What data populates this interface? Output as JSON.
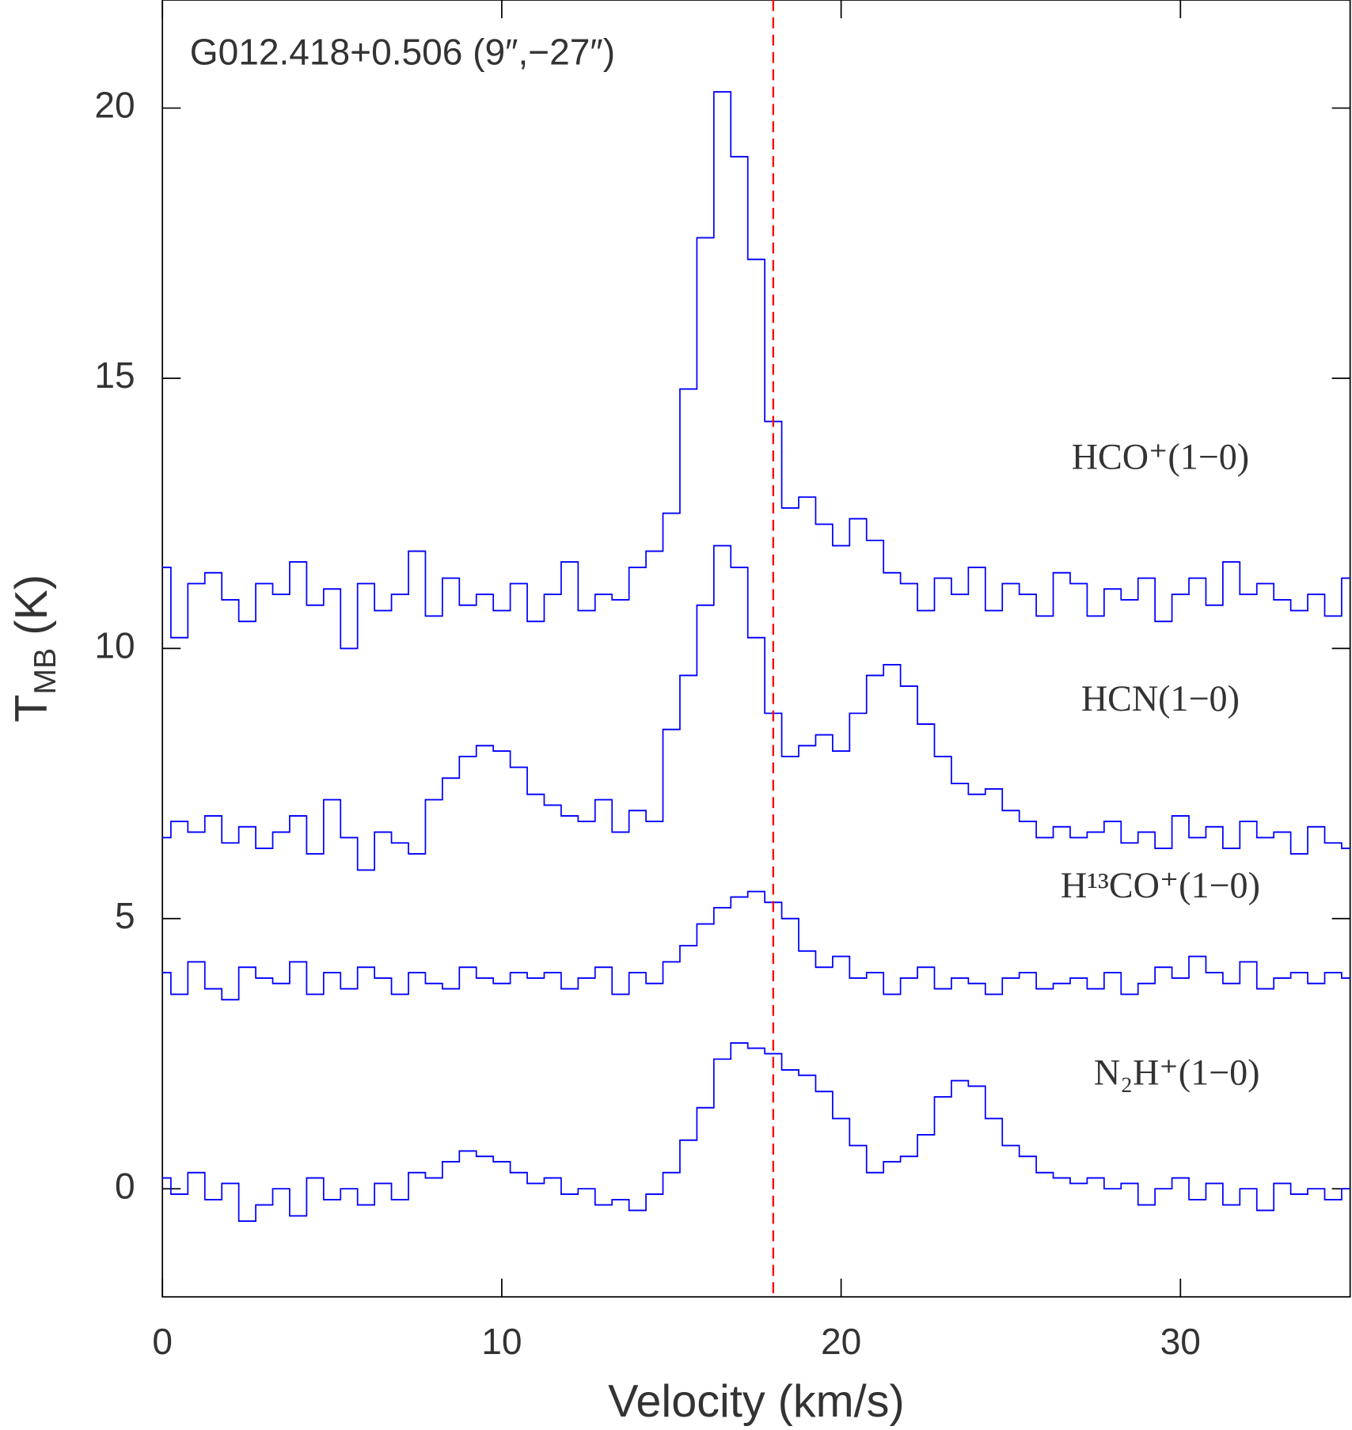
{
  "chart_data": {
    "type": "step",
    "title": "G012.418+0.506 (9″,−27″)",
    "x_label": "Velocity (km/s)",
    "y_label": [
      "T",
      "MB",
      "(K)"
    ],
    "xlim": [
      0,
      35
    ],
    "ylim": [
      -2,
      22
    ],
    "xticks": [
      0,
      10,
      20,
      30
    ],
    "yticks": [
      0,
      5,
      10,
      15,
      20
    ],
    "vline": {
      "x": 18,
      "color": "#ff0000"
    },
    "x": [
      0,
      0.5,
      1,
      1.5,
      2,
      2.5,
      3,
      3.5,
      4,
      4.5,
      5,
      5.5,
      6,
      6.5,
      7,
      7.5,
      8,
      8.5,
      9,
      9.5,
      10,
      10.5,
      11,
      11.5,
      12,
      12.5,
      13,
      13.5,
      14,
      14.5,
      15,
      15.5,
      16,
      16.5,
      17,
      17.5,
      18,
      18.5,
      19,
      19.5,
      20,
      20.5,
      21,
      21.5,
      22,
      22.5,
      23,
      23.5,
      24,
      24.5,
      25,
      25.5,
      26,
      26.5,
      27,
      27.5,
      28,
      28.5,
      29,
      29.5,
      30,
      30.5,
      31,
      31.5,
      32,
      32.5,
      33,
      33.5,
      34,
      34.5,
      35
    ],
    "series": [
      {
        "name": "HCO⁺(1−0)",
        "color": "#0000ff",
        "values": [
          11.5,
          10.2,
          11.2,
          11.4,
          10.9,
          10.5,
          11.2,
          11.0,
          11.6,
          10.8,
          11.1,
          10.0,
          11.2,
          10.7,
          11.0,
          11.8,
          10.6,
          11.3,
          10.8,
          11.0,
          10.7,
          11.2,
          10.5,
          11.0,
          11.6,
          10.7,
          11.0,
          10.9,
          11.5,
          11.8,
          12.5,
          14.8,
          17.6,
          20.3,
          19.1,
          17.2,
          14.2,
          12.6,
          12.8,
          12.3,
          11.9,
          12.4,
          12.0,
          11.4,
          11.2,
          10.7,
          11.3,
          11.0,
          11.5,
          10.7,
          11.2,
          11.0,
          10.6,
          11.4,
          11.2,
          10.6,
          11.1,
          10.9,
          11.3,
          10.5,
          11.0,
          11.3,
          10.8,
          11.6,
          11.0,
          11.2,
          10.9,
          10.7,
          11.0,
          10.6,
          11.3
        ]
      },
      {
        "name": "HCN(1−0)",
        "color": "#0000ff",
        "values": [
          6.5,
          6.8,
          6.6,
          6.9,
          6.4,
          6.7,
          6.3,
          6.6,
          6.9,
          6.2,
          7.2,
          6.5,
          5.9,
          6.6,
          6.4,
          6.2,
          7.2,
          7.6,
          8.0,
          8.2,
          8.1,
          7.8,
          7.3,
          7.1,
          6.9,
          6.8,
          7.2,
          6.6,
          7.0,
          6.8,
          8.5,
          9.5,
          10.8,
          11.9,
          11.5,
          10.2,
          8.8,
          8.0,
          8.2,
          8.4,
          8.1,
          8.8,
          9.5,
          9.7,
          9.3,
          8.6,
          8.0,
          7.5,
          7.3,
          7.4,
          7.0,
          6.8,
          6.5,
          6.7,
          6.5,
          6.6,
          6.8,
          6.4,
          6.6,
          6.3,
          6.9,
          6.5,
          6.7,
          6.3,
          6.8,
          6.5,
          6.6,
          6.2,
          6.7,
          6.4,
          6.3
        ]
      },
      {
        "name": "H¹³CO⁺(1−0)",
        "color": "#0000ff",
        "values": [
          4.0,
          3.6,
          4.2,
          3.7,
          3.5,
          4.1,
          3.9,
          3.8,
          4.2,
          3.6,
          4.0,
          3.7,
          4.1,
          3.9,
          3.6,
          4.0,
          3.8,
          3.7,
          4.1,
          3.9,
          3.8,
          4.0,
          3.9,
          4.0,
          3.7,
          3.9,
          4.1,
          3.6,
          4.0,
          3.8,
          4.2,
          4.5,
          4.9,
          5.2,
          5.4,
          5.5,
          5.3,
          5.0,
          4.4,
          4.1,
          4.3,
          3.9,
          4.0,
          3.6,
          3.9,
          4.1,
          3.7,
          3.9,
          3.8,
          3.6,
          3.9,
          4.0,
          3.7,
          3.8,
          3.9,
          3.7,
          4.0,
          3.6,
          3.8,
          4.1,
          3.9,
          4.3,
          4.0,
          3.8,
          4.2,
          3.7,
          3.9,
          4.0,
          3.8,
          4.0,
          3.9
        ]
      },
      {
        "name": "N₂H⁺(1−0)",
        "color": "#0000ff",
        "values": [
          0.2,
          -0.1,
          0.3,
          -0.2,
          0.1,
          -0.6,
          -0.3,
          0.0,
          -0.5,
          0.2,
          -0.2,
          0.0,
          -0.3,
          0.1,
          -0.2,
          0.3,
          0.2,
          0.5,
          0.7,
          0.6,
          0.5,
          0.3,
          0.1,
          0.2,
          -0.1,
          0.0,
          -0.3,
          -0.2,
          -0.4,
          -0.1,
          0.3,
          0.9,
          1.5,
          2.4,
          2.7,
          2.6,
          2.5,
          2.2,
          2.1,
          1.8,
          1.3,
          0.8,
          0.3,
          0.5,
          0.6,
          1.0,
          1.7,
          2.0,
          1.9,
          1.3,
          0.8,
          0.6,
          0.3,
          0.2,
          0.1,
          0.2,
          0.0,
          0.1,
          -0.3,
          0.0,
          0.2,
          -0.2,
          0.1,
          -0.3,
          0.0,
          -0.4,
          0.1,
          -0.1,
          0.0,
          -0.2,
          0.0
        ]
      }
    ]
  }
}
